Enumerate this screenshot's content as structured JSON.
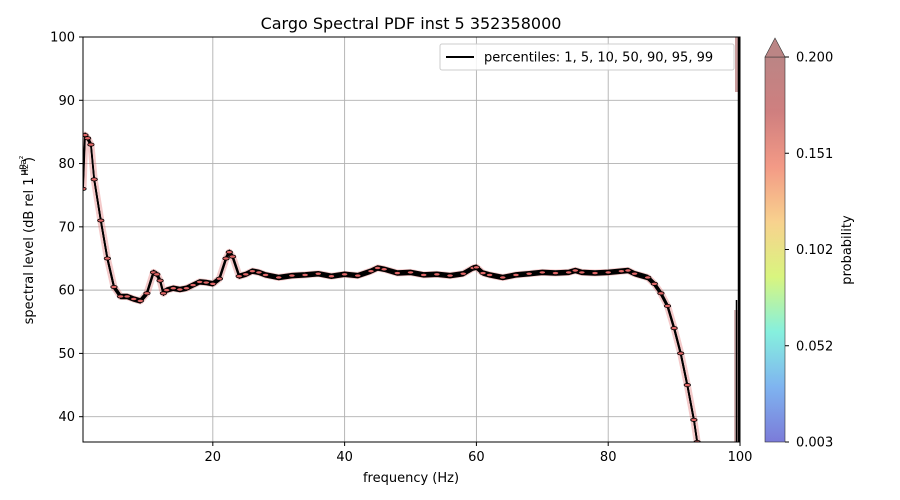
{
  "chart_data": {
    "type": "line",
    "title": "Cargo Spectral PDF inst 5 352358000",
    "xlabel": "frequency (Hz)",
    "ylabel": "spectral level (dB rel 1",
    "ylabel_unit_numerator": "μPa²",
    "ylabel_unit_denominator": "Hz",
    "ylabel_close": ")",
    "xlim": [
      0.3,
      100
    ],
    "ylim": [
      36,
      100
    ],
    "xticks": [
      20,
      40,
      60,
      80,
      100
    ],
    "yticks": [
      40,
      50,
      60,
      70,
      80,
      90,
      100
    ],
    "grid": true,
    "legend": {
      "position": "top-right",
      "entries": [
        "percentiles: 1, 5, 10, 50, 90, 95, 99"
      ]
    },
    "series": [
      {
        "name": "percentiles: 1, 5, 10, 50, 90, 95, 99",
        "color": "#000000",
        "x": [
          0.3,
          0.6,
          1,
          1.5,
          2,
          3,
          4,
          5,
          6,
          7,
          8,
          9,
          10,
          11,
          11.5,
          12,
          12.5,
          13,
          14,
          15,
          16,
          17,
          18,
          19,
          20,
          21,
          22,
          22.5,
          23,
          24,
          25,
          26,
          27,
          28,
          30,
          32,
          34,
          36,
          38,
          40,
          42,
          44,
          45,
          46,
          48,
          50,
          52,
          54,
          56,
          58,
          59.5,
          60,
          61,
          62,
          64,
          66,
          68,
          70,
          72,
          74,
          75,
          76,
          78,
          80,
          82,
          83,
          84,
          86,
          87,
          88,
          89,
          90,
          91,
          92,
          93,
          93.5
        ],
        "y": [
          76,
          84.5,
          84,
          83,
          77.5,
          71,
          65,
          60.5,
          59,
          59,
          58.6,
          58.3,
          59.5,
          62.8,
          62.5,
          61.5,
          59.5,
          60,
          60.3,
          60.1,
          60.3,
          60.8,
          61.3,
          61.2,
          61,
          61.8,
          65,
          66,
          65.3,
          62.2,
          62.5,
          63,
          62.8,
          62.4,
          62,
          62.3,
          62.4,
          62.6,
          62.2,
          62.5,
          62.3,
          63,
          63.5,
          63.3,
          62.7,
          62.8,
          62.4,
          62.5,
          62.3,
          62.6,
          63.5,
          63.6,
          62.7,
          62.4,
          62,
          62.4,
          62.6,
          62.8,
          62.7,
          62.8,
          63.1,
          62.8,
          62.7,
          62.8,
          63,
          63.1,
          62.6,
          62,
          61,
          59.5,
          57.5,
          54,
          50,
          45,
          39.5,
          36
        ]
      }
    ],
    "colorbar": {
      "label": "probability",
      "ticks": [
        "0.003",
        "0.052",
        "0.102",
        "0.151",
        "0.200"
      ],
      "range": [
        0.003,
        0.2
      ],
      "extend": "max",
      "colors": [
        "#7b7bd9",
        "#7fb4f0",
        "#86f0de",
        "#d9f57f",
        "#f8d28e",
        "#f39a86",
        "#cf7f7f",
        "#bb8585"
      ]
    }
  }
}
